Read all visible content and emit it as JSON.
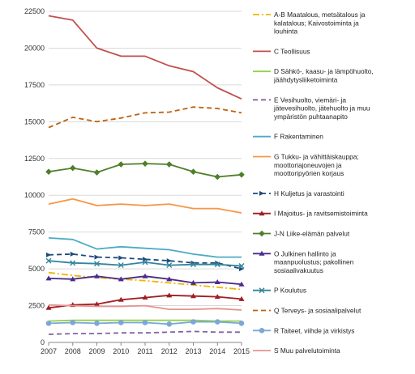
{
  "chart_data": {
    "type": "line",
    "x": [
      2007,
      2008,
      2009,
      2010,
      2011,
      2012,
      2013,
      2014,
      2015
    ],
    "ylim": [
      0,
      22500
    ],
    "yticks": [
      0,
      2500,
      5000,
      7500,
      10000,
      12500,
      15000,
      17500,
      20000,
      22500
    ],
    "grid": true,
    "legend_position": "right",
    "series": [
      {
        "name": "A-B Maatalous, metsätalous ja kalatalous; Kaivostoiminta ja louhinta",
        "color": "#F4B400",
        "style": "dashdot",
        "marker": "none",
        "values": [
          4750,
          4550,
          4400,
          4300,
          4200,
          4050,
          3900,
          3750,
          3600
        ]
      },
      {
        "name": "C Teollisuus",
        "color": "#C0504D",
        "style": "solid",
        "marker": "none",
        "values": [
          22200,
          21900,
          20000,
          19450,
          19450,
          18800,
          18400,
          17300,
          16550
        ]
      },
      {
        "name": "D Sähkö-, kaasu- ja lämpöhuolto, jäähdytysliiketoiminta",
        "color": "#92D050",
        "style": "solid",
        "marker": "none",
        "values": [
          1450,
          1500,
          1500,
          1500,
          1500,
          1500,
          1500,
          1450,
          1450
        ]
      },
      {
        "name": "E Vesihuolto, viemäri- ja jätevesihuolto, jätehuolto ja muu ympäristön puhtaanapito",
        "color": "#8064A2",
        "style": "dashed",
        "marker": "none",
        "values": [
          550,
          600,
          600,
          650,
          650,
          700,
          750,
          700,
          700
        ]
      },
      {
        "name": "F Rakentaminen",
        "color": "#4BACC6",
        "style": "solid",
        "marker": "none",
        "values": [
          7100,
          7000,
          6350,
          6500,
          6400,
          6300,
          6000,
          5800,
          5800
        ]
      },
      {
        "name": "G Tukku- ja vähittäiskauppa; moottoriajoneuvojen ja moottoripyörien korjaus",
        "color": "#F79646",
        "style": "solid",
        "marker": "none",
        "values": [
          9400,
          9750,
          9300,
          9400,
          9300,
          9400,
          9100,
          9100,
          8800
        ]
      },
      {
        "name": "H Kuljetus ja varastointi",
        "color": "#1F497D",
        "style": "dashed",
        "marker": "arrow",
        "values": [
          5950,
          6000,
          5800,
          5750,
          5650,
          5550,
          5400,
          5400,
          5000
        ]
      },
      {
        "name": "I Majoitus- ja ravitsemistoiminta",
        "color": "#A01E22",
        "style": "solid",
        "marker": "triangle",
        "values": [
          2350,
          2550,
          2600,
          2900,
          3050,
          3200,
          3150,
          3100,
          2950
        ]
      },
      {
        "name": "J-N Liike-elämän palvelut",
        "color": "#4F7F28",
        "style": "solid",
        "marker": "diamond",
        "values": [
          11600,
          11850,
          11550,
          12100,
          12150,
          12100,
          11600,
          11250,
          11400
        ]
      },
      {
        "name": "O Julkinen hallinto ja maanpuolustus; pakollinen sosiaalivakuutus",
        "color": "#4B2C8C",
        "style": "solid",
        "marker": "triangle",
        "values": [
          4350,
          4300,
          4500,
          4300,
          4500,
          4300,
          4050,
          4100,
          3950
        ]
      },
      {
        "name": "P Koulutus",
        "color": "#31859C",
        "style": "solid",
        "marker": "x",
        "values": [
          5550,
          5400,
          5350,
          5250,
          5450,
          5250,
          5300,
          5300,
          5200
        ]
      },
      {
        "name": "Q Terveys- ja sosiaalipalvelut",
        "color": "#C0600F",
        "style": "dashed",
        "marker": "none",
        "values": [
          14600,
          15300,
          15000,
          15250,
          15600,
          15650,
          16000,
          15900,
          15600
        ]
      },
      {
        "name": "R Taiteet, viihde ja virkistys",
        "color": "#7BA7D9",
        "style": "solid",
        "marker": "circle",
        "values": [
          1300,
          1350,
          1300,
          1350,
          1350,
          1250,
          1400,
          1400,
          1300
        ]
      },
      {
        "name": "S Muu palvelutoiminta",
        "color": "#E6928E",
        "style": "solid",
        "marker": "none",
        "values": [
          2550,
          2500,
          2450,
          2450,
          2500,
          2250,
          2250,
          2300,
          2200
        ]
      }
    ]
  }
}
